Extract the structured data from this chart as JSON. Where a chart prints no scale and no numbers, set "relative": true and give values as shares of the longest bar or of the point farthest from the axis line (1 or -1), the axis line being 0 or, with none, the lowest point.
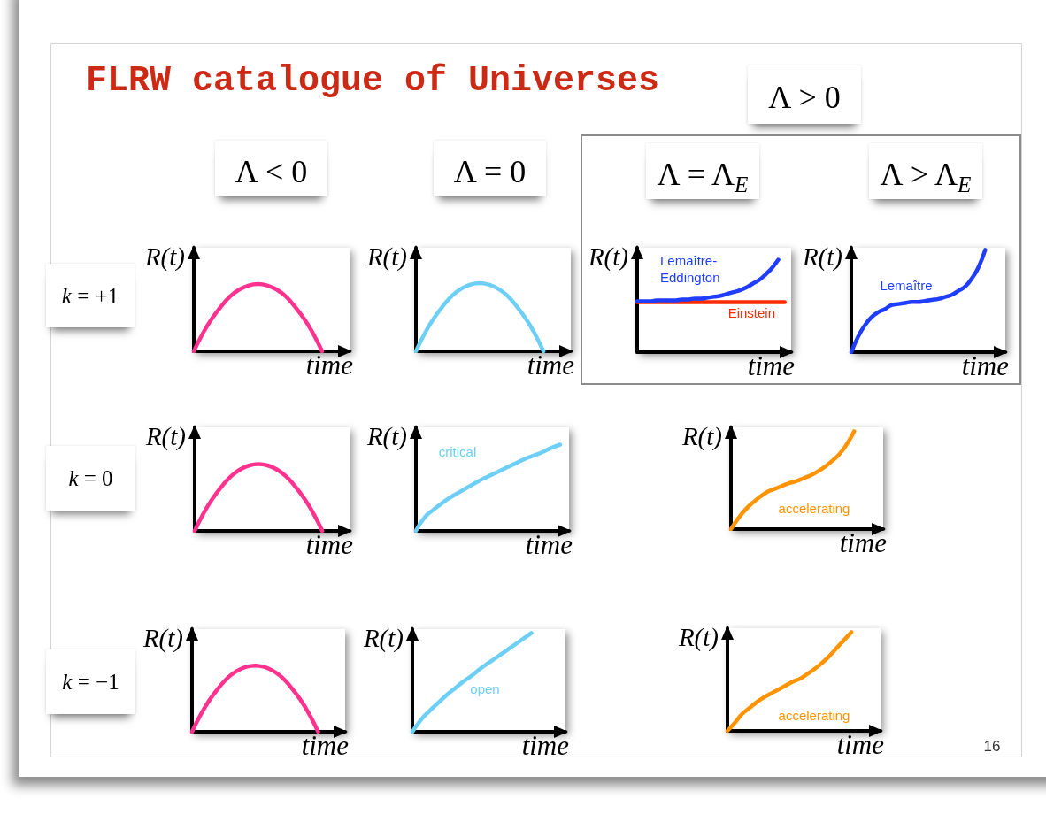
{
  "chart_data": [
    {
      "type": "other",
      "title": "FLRW catalogue of Universes",
      "annotations": [
        "Λ > 0",
        "Λ < 0",
        "Λ = 0",
        "Λ = Λ$_{E}$",
        "Λ > Λ$_{E}$",
        "k = +1",
        "k = 0",
        "k = −1",
        "16"
      ]
    },
    {
      "type": "line",
      "relative": true,
      "xlabel": "time",
      "ylabel": "R(t)",
      "categories": [
        null,
        null,
        null,
        null,
        null,
        null,
        null,
        null,
        null,
        null,
        null,
        null,
        null,
        null,
        null,
        null,
        null,
        null
      ],
      "series": [
        {
          "color": "#ff338f",
          "values": [
            0,
            0.27,
            0.49,
            0.67,
            0.82,
            0.92,
            0.98,
            1,
            0.98,
            0.92,
            0.82,
            0.67,
            0.49,
            0.27,
            0,
            null,
            null,
            null
          ]
        }
      ]
    },
    {
      "type": "line",
      "relative": true,
      "xlabel": "time",
      "ylabel": "R(t)",
      "categories": [
        null,
        null,
        null,
        null,
        null,
        null,
        null,
        null,
        null,
        null,
        null,
        null,
        null,
        null,
        null,
        null,
        null,
        null
      ],
      "series": [
        {
          "color": "#6dcff6",
          "values": [
            0,
            0.27,
            0.49,
            0.67,
            0.82,
            0.92,
            0.98,
            1,
            0.98,
            0.92,
            0.82,
            0.67,
            0.49,
            0.27,
            0,
            null,
            null,
            null
          ]
        }
      ]
    },
    {
      "type": "line",
      "relative": true,
      "xlabel": "time",
      "ylabel": "R(t)",
      "categories": [
        null,
        null,
        null,
        null,
        null,
        null,
        null,
        null,
        null,
        null,
        null,
        null,
        null,
        null,
        null,
        null,
        null,
        null,
        null,
        null,
        null,
        null,
        null,
        null,
        null
      ],
      "series": [
        {
          "name": "Lemaître-Eddington",
          "color": "#1f3dff",
          "values": [
            0.55,
            0.55,
            0.55,
            0.56,
            0.56,
            0.56,
            0.56,
            0.57,
            0.57,
            0.58,
            0.58,
            0.59,
            0.6,
            0.61,
            0.63,
            0.65,
            0.67,
            0.7,
            0.74,
            0.78,
            0.84,
            0.91,
            1,
            null,
            null
          ]
        },
        {
          "name": "Einstein",
          "color": "#ff2a00",
          "values": [
            0.54,
            0.54,
            0.54,
            0.54,
            0.54,
            0.54,
            0.54,
            0.54,
            0.54,
            0.54,
            0.54,
            0.54,
            0.54,
            0.54,
            0.54,
            0.54,
            0.54,
            0.54,
            0.54,
            0.54,
            0.54,
            0.54,
            0.54,
            0.54,
            null
          ]
        }
      ]
    },
    {
      "type": "line",
      "relative": true,
      "xlabel": "time",
      "ylabel": "R(t)",
      "categories": [
        null,
        null,
        null,
        null,
        null,
        null,
        null,
        null,
        null,
        null,
        null,
        null,
        null,
        null,
        null,
        null,
        null,
        null,
        null,
        null,
        null,
        null,
        null,
        null
      ],
      "series": [
        {
          "name": "Lemaître",
          "color": "#1f3dff",
          "values": [
            0,
            0.15,
            0.26,
            0.34,
            0.39,
            0.42,
            0.46,
            0.47,
            0.48,
            0.49,
            0.49,
            0.5,
            0.51,
            0.52,
            0.54,
            0.56,
            0.6,
            0.64,
            0.72,
            0.83,
            1,
            null,
            null,
            null
          ]
        }
      ]
    },
    {
      "type": "line",
      "relative": true,
      "xlabel": "time",
      "ylabel": "R(t)",
      "categories": [
        null,
        null,
        null,
        null,
        null,
        null,
        null,
        null,
        null,
        null,
        null,
        null,
        null,
        null,
        null,
        null,
        null,
        null
      ],
      "series": [
        {
          "color": "#ff338f",
          "values": [
            0,
            0.27,
            0.49,
            0.67,
            0.82,
            0.92,
            0.98,
            1,
            0.98,
            0.92,
            0.82,
            0.67,
            0.49,
            0.27,
            0,
            null,
            null,
            null
          ]
        }
      ]
    },
    {
      "type": "line",
      "relative": true,
      "xlabel": "time",
      "ylabel": "R(t)",
      "categories": [
        null,
        null,
        null,
        null,
        null,
        null,
        null,
        null,
        null,
        null,
        null,
        null,
        null,
        null,
        null,
        null,
        null,
        null
      ],
      "series": [
        {
          "name": "critical",
          "color": "#6dcff6",
          "values": [
            0,
            0.16,
            0.25,
            0.33,
            0.4,
            0.46,
            0.52,
            0.58,
            0.63,
            0.68,
            0.73,
            0.78,
            0.83,
            0.87,
            0.91,
            0.96,
            1,
            null
          ]
        }
      ]
    },
    {
      "type": "line",
      "relative": true,
      "xlabel": "time",
      "ylabel": "R(t)",
      "categories": [
        null,
        null,
        null,
        null,
        null,
        null,
        null,
        null,
        null,
        null,
        null,
        null,
        null,
        null,
        null,
        null,
        null,
        null,
        null,
        null,
        null,
        null
      ],
      "series": [
        {
          "name": "accelerating",
          "color": "#ff9400",
          "values": [
            0,
            0.11,
            0.2,
            0.27,
            0.33,
            0.38,
            0.41,
            0.44,
            0.47,
            0.49,
            0.52,
            0.55,
            0.59,
            0.64,
            0.7,
            0.77,
            0.87,
            1,
            null,
            null,
            null,
            null
          ]
        }
      ]
    },
    {
      "type": "line",
      "relative": true,
      "xlabel": "time",
      "ylabel": "R(t)",
      "categories": [
        null,
        null,
        null,
        null,
        null,
        null,
        null,
        null,
        null,
        null,
        null,
        null,
        null,
        null,
        null,
        null,
        null,
        null
      ],
      "series": [
        {
          "color": "#ff338f",
          "values": [
            0,
            0.27,
            0.49,
            0.67,
            0.82,
            0.92,
            0.98,
            1,
            0.98,
            0.92,
            0.82,
            0.67,
            0.49,
            0.27,
            0,
            null,
            null,
            null
          ]
        }
      ]
    },
    {
      "type": "line",
      "relative": true,
      "xlabel": "time",
      "ylabel": "R(t)",
      "categories": [
        null,
        null,
        null,
        null,
        null,
        null,
        null,
        null,
        null,
        null,
        null,
        null,
        null,
        null,
        null,
        null,
        null,
        null,
        null
      ],
      "series": [
        {
          "name": "open",
          "color": "#6dcff6",
          "values": [
            0,
            0.12,
            0.21,
            0.29,
            0.37,
            0.44,
            0.51,
            0.57,
            0.64,
            0.7,
            0.76,
            0.82,
            0.88,
            0.94,
            1,
            null,
            null,
            null,
            null
          ]
        }
      ]
    },
    {
      "type": "line",
      "relative": true,
      "xlabel": "time",
      "ylabel": "R(t)",
      "categories": [
        null,
        null,
        null,
        null,
        null,
        null,
        null,
        null,
        null,
        null,
        null,
        null,
        null,
        null,
        null,
        null,
        null,
        null,
        null,
        null,
        null,
        null
      ],
      "series": [
        {
          "name": "accelerating",
          "color": "#ff9400",
          "values": [
            0,
            0.08,
            0.17,
            0.23,
            0.29,
            0.34,
            0.38,
            0.42,
            0.46,
            0.5,
            0.53,
            0.58,
            0.63,
            0.69,
            0.76,
            0.84,
            0.92,
            1,
            null,
            null,
            null,
            null
          ]
        }
      ]
    }
  ]
}
